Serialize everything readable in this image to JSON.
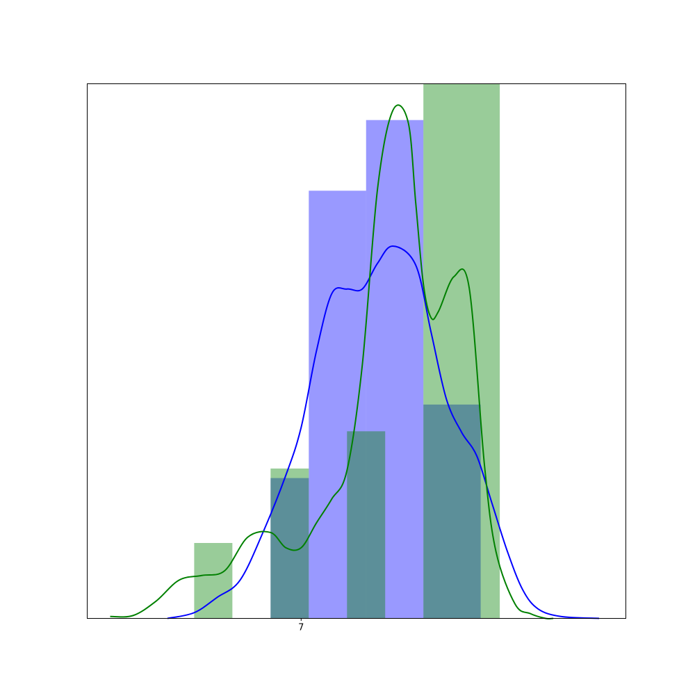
{
  "chart_data": {
    "type": "bar",
    "title": "",
    "xlabel": "",
    "ylabel": "",
    "x_ticks": [
      {
        "value": 7,
        "label": "7"
      }
    ],
    "xlim": [
      4.2,
      11.25
    ],
    "ylim": [
      0,
      0.56
    ],
    "grid": false,
    "legend": "none",
    "series": [
      {
        "kind": "histogram",
        "color": "#0000ff",
        "alpha": 0.4,
        "bins": [
          {
            "x0": 6.6,
            "x1": 7.1,
            "value": 0.147
          },
          {
            "x0": 7.1,
            "x1": 7.85,
            "value": 0.448
          },
          {
            "x0": 7.85,
            "x1": 8.6,
            "value": 0.522
          },
          {
            "x0": 8.6,
            "x1": 9.35,
            "value": 0.224
          }
        ]
      },
      {
        "kind": "histogram",
        "color": "#008000",
        "alpha": 0.4,
        "bins": [
          {
            "x0": 5.6,
            "x1": 6.1,
            "value": 0.079
          },
          {
            "x0": 6.6,
            "x1": 7.1,
            "value": 0.157
          },
          {
            "x0": 7.6,
            "x1": 8.1,
            "value": 0.196
          },
          {
            "x0": 8.6,
            "x1": 9.6,
            "value": 0.56
          }
        ]
      },
      {
        "kind": "kde",
        "color": "#0000ff",
        "x": [
          5.25,
          5.6,
          5.9,
          6.2,
          6.5,
          6.8,
          7.0,
          7.2,
          7.4,
          7.6,
          7.8,
          8.0,
          8.2,
          8.5,
          8.7,
          8.9,
          9.1,
          9.3,
          9.5,
          9.7,
          9.9,
          10.1,
          10.4,
          10.9
        ],
        "y": [
          0.0,
          0.006,
          0.022,
          0.04,
          0.09,
          0.15,
          0.2,
          0.28,
          0.34,
          0.345,
          0.345,
          0.372,
          0.39,
          0.37,
          0.3,
          0.23,
          0.195,
          0.17,
          0.12,
          0.07,
          0.03,
          0.01,
          0.002,
          0.0
        ]
      },
      {
        "kind": "kde",
        "color": "#008000",
        "x": [
          4.5,
          4.8,
          5.1,
          5.4,
          5.7,
          6.0,
          6.3,
          6.6,
          6.8,
          7.0,
          7.2,
          7.4,
          7.6,
          7.8,
          8.0,
          8.2,
          8.4,
          8.5,
          8.6,
          8.7,
          8.8,
          9.0,
          9.2,
          9.4,
          9.55,
          9.8,
          10.0,
          10.2,
          10.3
        ],
        "y": [
          0.002,
          0.003,
          0.018,
          0.04,
          0.045,
          0.05,
          0.085,
          0.09,
          0.074,
          0.074,
          0.1,
          0.125,
          0.155,
          0.265,
          0.45,
          0.532,
          0.52,
          0.435,
          0.35,
          0.315,
          0.322,
          0.358,
          0.346,
          0.16,
          0.07,
          0.015,
          0.005,
          0.0,
          0.0
        ]
      }
    ]
  }
}
